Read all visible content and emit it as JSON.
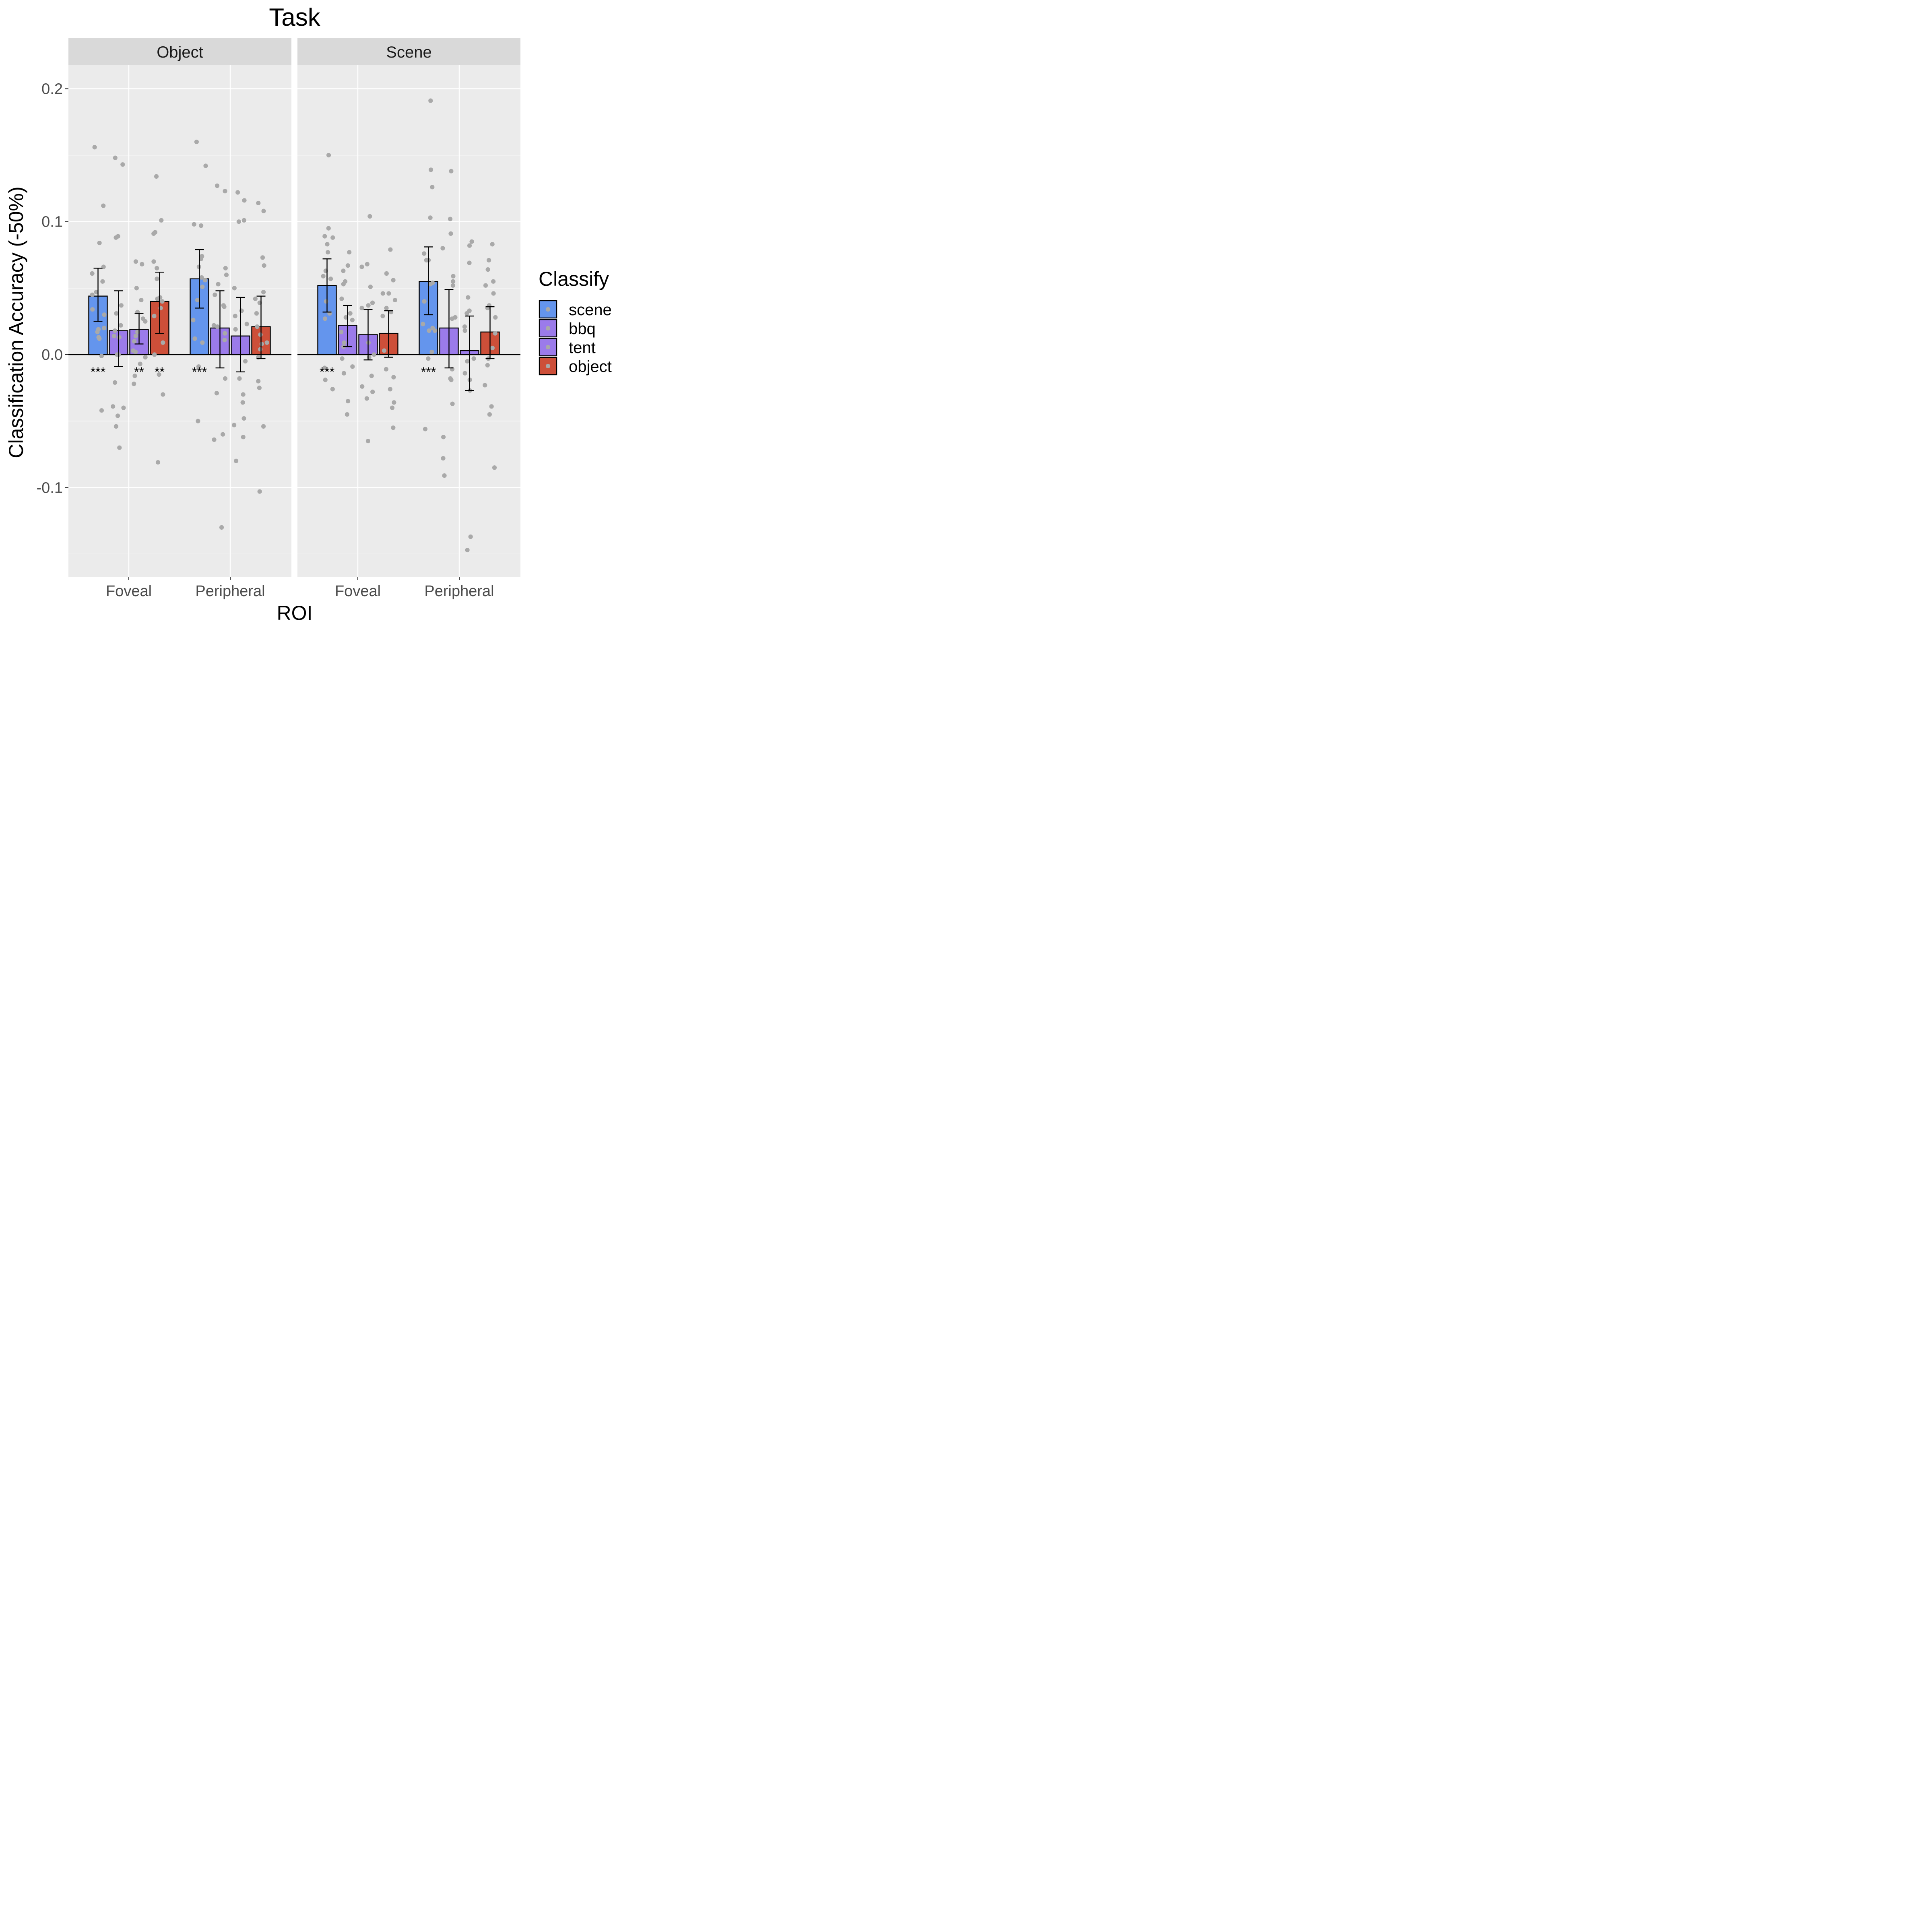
{
  "chart_data": {
    "type": "bar",
    "title": "Task",
    "xlabel": "ROI",
    "ylabel": "Classification Accuracy (-50%)",
    "ylim": [
      -0.167,
      0.218
    ],
    "yticks": [
      {
        "value": 0.2,
        "label": "0.2"
      },
      {
        "value": 0.1,
        "label": "0.1"
      },
      {
        "value": 0.0,
        "label": "0.0"
      },
      {
        "value": -0.1,
        "label": "-0.1"
      }
    ],
    "categories": [
      "Foveal",
      "Peripheral"
    ],
    "grid": true,
    "legend": {
      "title": "Classify",
      "position": "right",
      "items": [
        {
          "label": "scene",
          "color": "#6495ED"
        },
        {
          "label": "bbq",
          "color": "#9B7BEA"
        },
        {
          "label": "tent",
          "color": "#9B7BEA"
        },
        {
          "label": "object",
          "color": "#CD4F39"
        }
      ]
    },
    "colors": {
      "panel_bg": "#EBEBEB",
      "strip_bg": "#D9D9D9",
      "grid": "#FFFFFF",
      "point": "#A9A9A9",
      "zero_line": "#000000"
    },
    "panels": [
      {
        "label": "Object",
        "groups": [
          {
            "roi": "Foveal",
            "bars": [
              {
                "series": "scene",
                "value": 0.044,
                "se_low": 0.025,
                "se_high": 0.065,
                "sig": "***",
                "points": [
                  0.156,
                  0.112,
                  0.084,
                  0.066,
                  0.061,
                  0.055,
                  0.047,
                  0.045,
                  0.034,
                  0.03,
                  0.02,
                  0.019,
                  0.017,
                  0.013,
                  0.012,
                  -0.001,
                  -0.042
                ]
              },
              {
                "series": "bbq",
                "value": 0.018,
                "se_low": -0.009,
                "se_high": 0.048,
                "sig": "",
                "points": [
                  0.148,
                  0.143,
                  0.089,
                  0.088,
                  0.037,
                  0.031,
                  0.022,
                  0.018,
                  0.014,
                  0.013,
                  0.0,
                  0.0,
                  -0.021,
                  -0.039,
                  -0.04,
                  -0.046,
                  -0.054,
                  -0.07
                ]
              },
              {
                "series": "tent",
                "value": 0.019,
                "se_low": 0.008,
                "se_high": 0.031,
                "sig": "**",
                "points": [
                  0.07,
                  0.068,
                  0.05,
                  0.041,
                  0.032,
                  0.027,
                  0.025,
                  0.017,
                  0.014,
                  0.01,
                  0.003,
                  0.002,
                  -0.002,
                  -0.007,
                  -0.016,
                  -0.022
                ]
              },
              {
                "series": "object",
                "value": 0.04,
                "se_low": 0.016,
                "se_high": 0.062,
                "sig": "**",
                "points": [
                  0.134,
                  0.101,
                  0.092,
                  0.091,
                  0.07,
                  0.065,
                  0.057,
                  0.043,
                  0.042,
                  0.04,
                  0.035,
                  0.029,
                  0.009,
                  0.0,
                  -0.015,
                  -0.03,
                  -0.081
                ]
              }
            ]
          },
          {
            "roi": "Peripheral",
            "bars": [
              {
                "series": "scene",
                "value": 0.057,
                "se_low": 0.035,
                "se_high": 0.079,
                "sig": "***",
                "points": [
                  0.16,
                  0.142,
                  0.098,
                  0.097,
                  0.074,
                  0.072,
                  0.066,
                  0.058,
                  0.056,
                  0.051,
                  0.041,
                  0.026,
                  0.012,
                  0.009,
                  -0.009,
                  -0.05
                ]
              },
              {
                "series": "bbq",
                "value": 0.02,
                "se_low": -0.01,
                "se_high": 0.048,
                "sig": "",
                "points": [
                  0.127,
                  0.123,
                  0.065,
                  0.06,
                  0.053,
                  0.045,
                  0.037,
                  0.036,
                  0.022,
                  0.021,
                  0.016,
                  0.011,
                  -0.018,
                  -0.029,
                  -0.06,
                  -0.064,
                  -0.13
                ]
              },
              {
                "series": "tent",
                "value": 0.014,
                "se_low": -0.013,
                "se_high": 0.043,
                "sig": "",
                "points": [
                  0.122,
                  0.116,
                  0.101,
                  0.1,
                  0.05,
                  0.033,
                  0.029,
                  0.023,
                  0.019,
                  -0.005,
                  -0.018,
                  -0.03,
                  -0.036,
                  -0.048,
                  -0.053,
                  -0.062,
                  -0.08
                ]
              },
              {
                "series": "object",
                "value": 0.021,
                "se_low": -0.003,
                "se_high": 0.044,
                "sig": "",
                "points": [
                  0.114,
                  0.108,
                  0.073,
                  0.067,
                  0.047,
                  0.042,
                  0.039,
                  0.031,
                  0.021,
                  0.015,
                  0.009,
                  0.008,
                  0.004,
                  -0.002,
                  -0.02,
                  -0.025,
                  -0.054,
                  -0.103
                ]
              }
            ]
          }
        ]
      },
      {
        "label": "Scene",
        "groups": [
          {
            "roi": "Foveal",
            "bars": [
              {
                "series": "scene",
                "value": 0.052,
                "se_low": 0.032,
                "se_high": 0.072,
                "sig": "***",
                "points": [
                  0.15,
                  0.095,
                  0.089,
                  0.088,
                  0.083,
                  0.077,
                  0.063,
                  0.059,
                  0.057,
                  0.04,
                  0.031,
                  0.027,
                  -0.01,
                  -0.019,
                  -0.026
                ]
              },
              {
                "series": "bbq",
                "value": 0.022,
                "se_low": 0.006,
                "se_high": 0.037,
                "sig": "",
                "points": [
                  0.077,
                  0.067,
                  0.063,
                  0.055,
                  0.053,
                  0.042,
                  0.031,
                  0.028,
                  0.026,
                  0.017,
                  0.009,
                  0.006,
                  -0.003,
                  -0.009,
                  -0.014,
                  -0.035,
                  -0.045
                ]
              },
              {
                "series": "tent",
                "value": 0.015,
                "se_low": -0.004,
                "se_high": 0.034,
                "sig": "",
                "points": [
                  0.104,
                  0.068,
                  0.066,
                  0.051,
                  0.039,
                  0.037,
                  0.035,
                  0.009,
                  0.0,
                  -0.002,
                  -0.016,
                  -0.024,
                  -0.028,
                  -0.033,
                  -0.065
                ]
              },
              {
                "series": "object",
                "value": 0.016,
                "se_low": -0.002,
                "se_high": 0.033,
                "sig": "",
                "points": [
                  0.079,
                  0.061,
                  0.056,
                  0.046,
                  0.046,
                  0.041,
                  0.035,
                  0.032,
                  0.029,
                  0.003,
                  -0.011,
                  -0.017,
                  -0.026,
                  -0.036,
                  -0.04,
                  -0.055
                ]
              }
            ]
          },
          {
            "roi": "Peripheral",
            "bars": [
              {
                "series": "scene",
                "value": 0.055,
                "se_low": 0.03,
                "se_high": 0.081,
                "sig": "***",
                "points": [
                  0.191,
                  0.139,
                  0.126,
                  0.103,
                  0.076,
                  0.071,
                  0.071,
                  0.054,
                  0.053,
                  0.04,
                  0.023,
                  0.02,
                  0.018,
                  0.018,
                  0.002,
                  -0.003,
                  -0.056
                ]
              },
              {
                "series": "bbq",
                "value": 0.02,
                "se_low": -0.01,
                "se_high": 0.049,
                "sig": "",
                "points": [
                  0.138,
                  0.102,
                  0.091,
                  0.08,
                  0.059,
                  0.055,
                  0.052,
                  0.028,
                  0.027,
                  -0.011,
                  -0.018,
                  -0.019,
                  -0.037,
                  -0.062,
                  -0.078,
                  -0.091
                ]
              },
              {
                "series": "tent",
                "value": 0.003,
                "se_low": -0.027,
                "se_high": 0.029,
                "sig": "",
                "points": [
                  0.085,
                  0.082,
                  0.069,
                  0.043,
                  0.033,
                  0.031,
                  0.021,
                  0.018,
                  -0.003,
                  -0.005,
                  -0.014,
                  -0.019,
                  -0.027,
                  -0.137,
                  -0.147
                ]
              },
              {
                "series": "object",
                "value": 0.017,
                "se_low": -0.003,
                "se_high": 0.036,
                "sig": "",
                "points": [
                  0.083,
                  0.071,
                  0.064,
                  0.055,
                  0.052,
                  0.046,
                  0.037,
                  0.035,
                  0.028,
                  0.016,
                  0.005,
                  -0.003,
                  -0.008,
                  -0.023,
                  -0.039,
                  -0.045,
                  -0.085
                ]
              }
            ]
          }
        ]
      }
    ]
  }
}
